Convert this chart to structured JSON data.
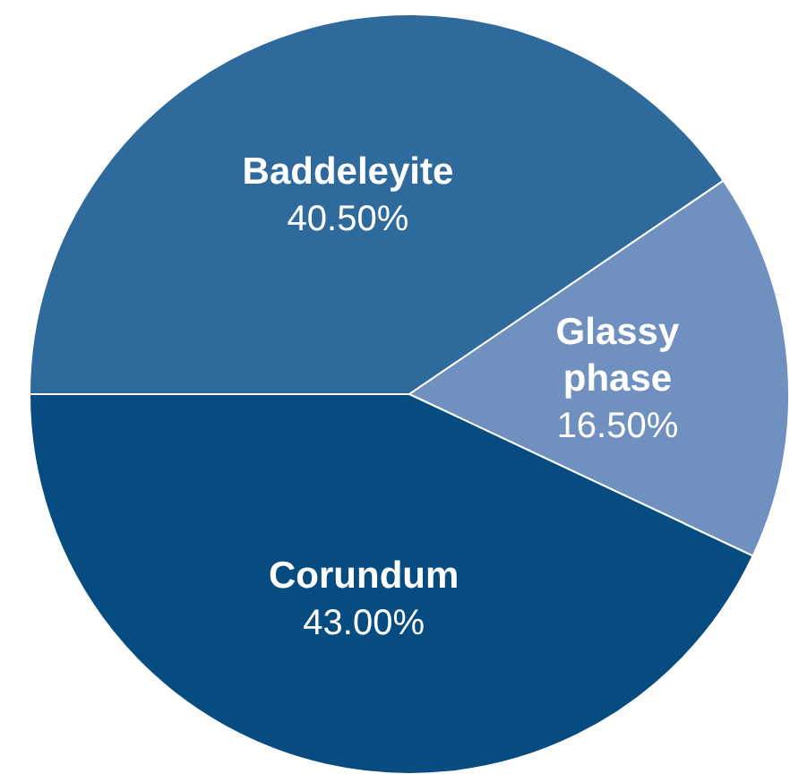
{
  "chart_data": {
    "type": "pie",
    "categories": [
      "Baddeleyite",
      "Glassy phase",
      "Corundum"
    ],
    "values": [
      40.5,
      16.5,
      43
    ],
    "value_labels": [
      "40.50%",
      "16.50%",
      "43.00%"
    ],
    "colors": [
      "#2f6a9c",
      "#7091c0",
      "#064c80"
    ]
  }
}
